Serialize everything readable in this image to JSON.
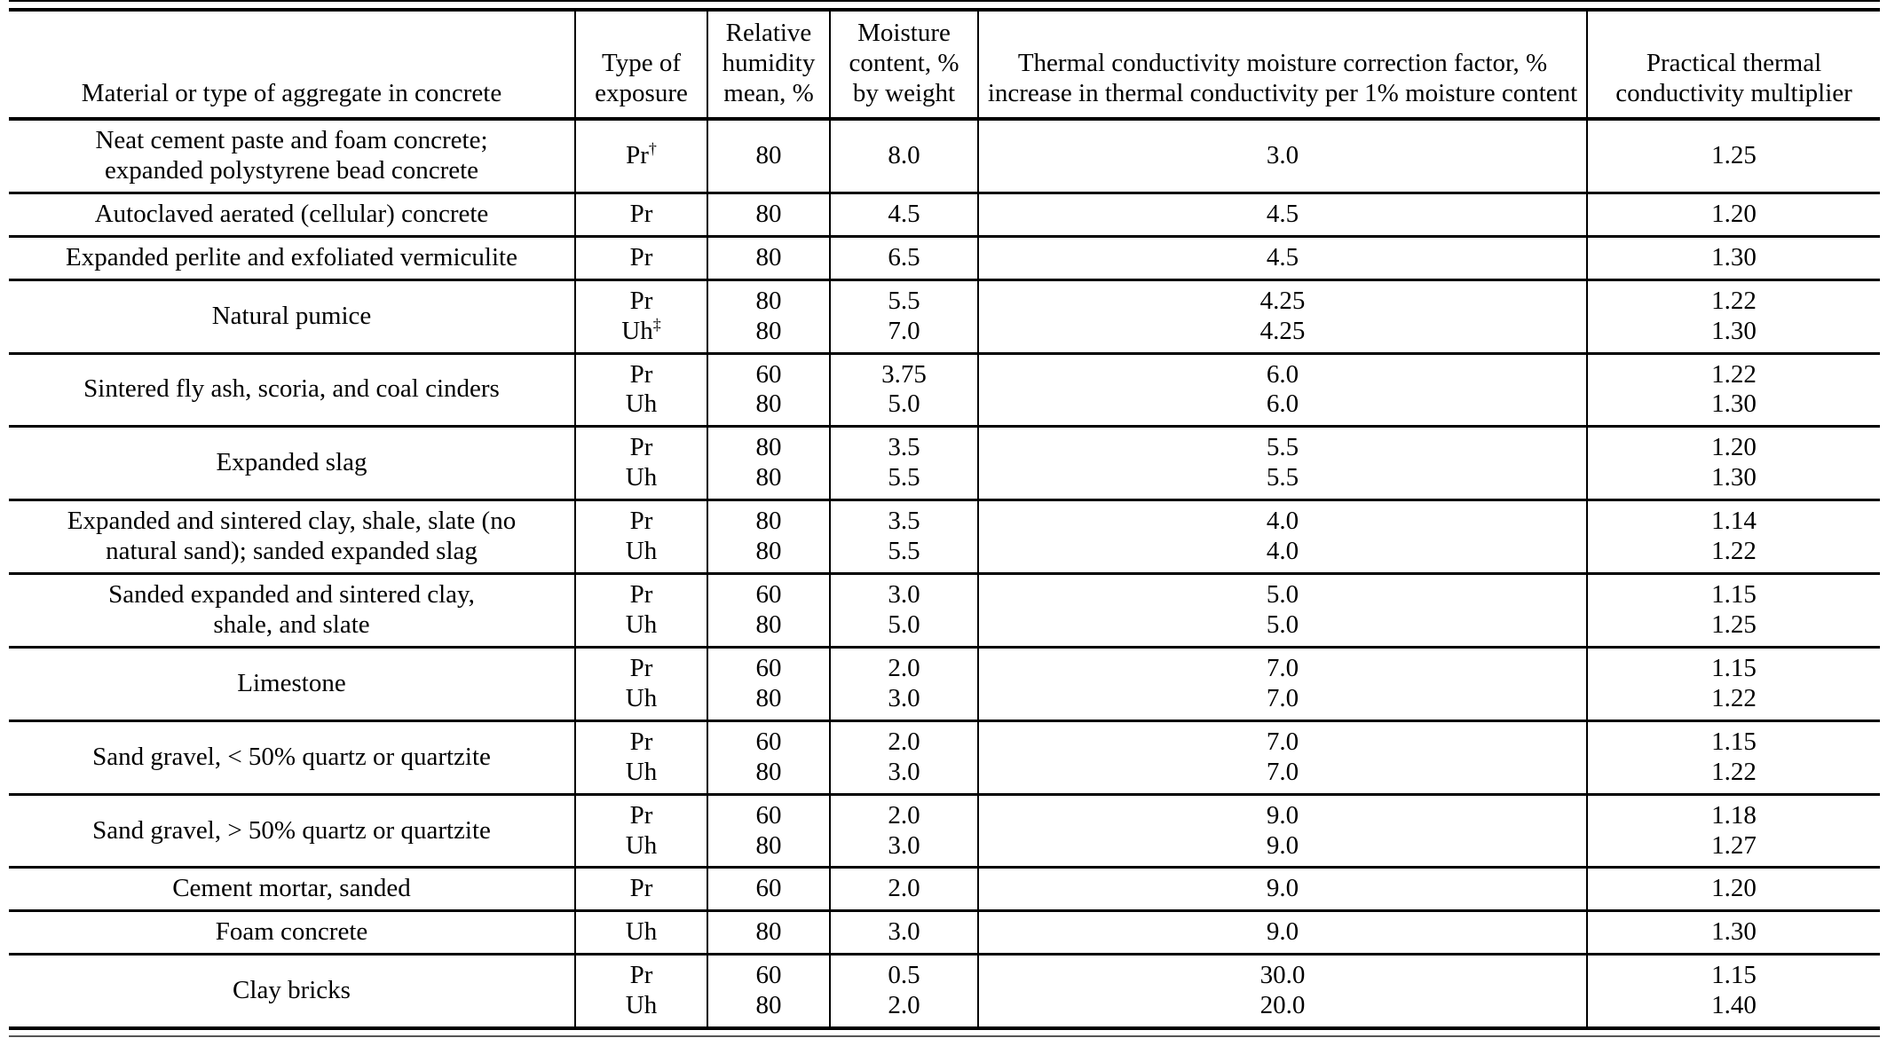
{
  "table": {
    "columns": [
      "Material or type of aggregate in concrete",
      "Type of exposure",
      "Relative humidity mean, %",
      "Moisture content, % by weight",
      "Thermal conductivity moisture correction factor, % increase in thermal conductivity per 1% moisture content",
      "Practical thermal conductivity multiplier"
    ],
    "rows": [
      {
        "material": [
          "Neat cement paste and foam concrete;",
          "expanded polystyrene bead concrete"
        ],
        "lines": [
          {
            "exp": "Pr",
            "sup": "†",
            "rh": "80",
            "mc": "8.0",
            "factor": "3.0",
            "mult": "1.25"
          }
        ]
      },
      {
        "material": [
          "Autoclaved aerated (cellular) concrete"
        ],
        "lines": [
          {
            "exp": "Pr",
            "sup": "",
            "rh": "80",
            "mc": "4.5",
            "factor": "4.5",
            "mult": "1.20"
          }
        ]
      },
      {
        "material": [
          "Expanded perlite and exfoliated vermiculite"
        ],
        "lines": [
          {
            "exp": "Pr",
            "sup": "",
            "rh": "80",
            "mc": "6.5",
            "factor": "4.5",
            "mult": "1.30"
          }
        ]
      },
      {
        "material": [
          "Natural pumice"
        ],
        "lines": [
          {
            "exp": "Pr",
            "sup": "",
            "rh": "80",
            "mc": "5.5",
            "factor": "4.25",
            "mult": "1.22"
          },
          {
            "exp": "Uh",
            "sup": "‡",
            "rh": "80",
            "mc": "7.0",
            "factor": "4.25",
            "mult": "1.30"
          }
        ]
      },
      {
        "material": [
          "Sintered fly ash, scoria, and coal cinders"
        ],
        "lines": [
          {
            "exp": "Pr",
            "sup": "",
            "rh": "60",
            "mc": "3.75",
            "factor": "6.0",
            "mult": "1.22"
          },
          {
            "exp": "Uh",
            "sup": "",
            "rh": "80",
            "mc": "5.0",
            "factor": "6.0",
            "mult": "1.30"
          }
        ]
      },
      {
        "material": [
          "Expanded slag"
        ],
        "lines": [
          {
            "exp": "Pr",
            "sup": "",
            "rh": "80",
            "mc": "3.5",
            "factor": "5.5",
            "mult": "1.20"
          },
          {
            "exp": "Uh",
            "sup": "",
            "rh": "80",
            "mc": "5.5",
            "factor": "5.5",
            "mult": "1.30"
          }
        ]
      },
      {
        "material": [
          "Expanded and sintered clay, shale, slate (no",
          "natural sand); sanded expanded slag"
        ],
        "lines": [
          {
            "exp": "Pr",
            "sup": "",
            "rh": "80",
            "mc": "3.5",
            "factor": "4.0",
            "mult": "1.14"
          },
          {
            "exp": "Uh",
            "sup": "",
            "rh": "80",
            "mc": "5.5",
            "factor": "4.0",
            "mult": "1.22"
          }
        ]
      },
      {
        "material": [
          "Sanded expanded and sintered clay,",
          "shale, and slate"
        ],
        "lines": [
          {
            "exp": "Pr",
            "sup": "",
            "rh": "60",
            "mc": "3.0",
            "factor": "5.0",
            "mult": "1.15"
          },
          {
            "exp": "Uh",
            "sup": "",
            "rh": "80",
            "mc": "5.0",
            "factor": "5.0",
            "mult": "1.25"
          }
        ]
      },
      {
        "material": [
          "Limestone"
        ],
        "lines": [
          {
            "exp": "Pr",
            "sup": "",
            "rh": "60",
            "mc": "2.0",
            "factor": "7.0",
            "mult": "1.15"
          },
          {
            "exp": "Uh",
            "sup": "",
            "rh": "80",
            "mc": "3.0",
            "factor": "7.0",
            "mult": "1.22"
          }
        ]
      },
      {
        "material": [
          "Sand gravel, < 50% quartz or quartzite"
        ],
        "lines": [
          {
            "exp": "Pr",
            "sup": "",
            "rh": "60",
            "mc": "2.0",
            "factor": "7.0",
            "mult": "1.15"
          },
          {
            "exp": "Uh",
            "sup": "",
            "rh": "80",
            "mc": "3.0",
            "factor": "7.0",
            "mult": "1.22"
          }
        ]
      },
      {
        "material": [
          "Sand gravel, > 50% quartz or quartzite"
        ],
        "lines": [
          {
            "exp": "Pr",
            "sup": "",
            "rh": "60",
            "mc": "2.0",
            "factor": "9.0",
            "mult": "1.18"
          },
          {
            "exp": "Uh",
            "sup": "",
            "rh": "80",
            "mc": "3.0",
            "factor": "9.0",
            "mult": "1.27"
          }
        ]
      },
      {
        "material": [
          "Cement mortar, sanded"
        ],
        "lines": [
          {
            "exp": "Pr",
            "sup": "",
            "rh": "60",
            "mc": "2.0",
            "factor": "9.0",
            "mult": "1.20"
          }
        ]
      },
      {
        "material": [
          "Foam concrete"
        ],
        "lines": [
          {
            "exp": "Uh",
            "sup": "",
            "rh": "80",
            "mc": "3.0",
            "factor": "9.0",
            "mult": "1.30"
          }
        ]
      },
      {
        "material": [
          "Clay bricks"
        ],
        "lines": [
          {
            "exp": "Pr",
            "sup": "",
            "rh": "60",
            "mc": "0.5",
            "factor": "30.0",
            "mult": "1.15"
          },
          {
            "exp": "Uh",
            "sup": "",
            "rh": "80",
            "mc": "2.0",
            "factor": "20.0",
            "mult": "1.40"
          }
        ]
      }
    ]
  }
}
